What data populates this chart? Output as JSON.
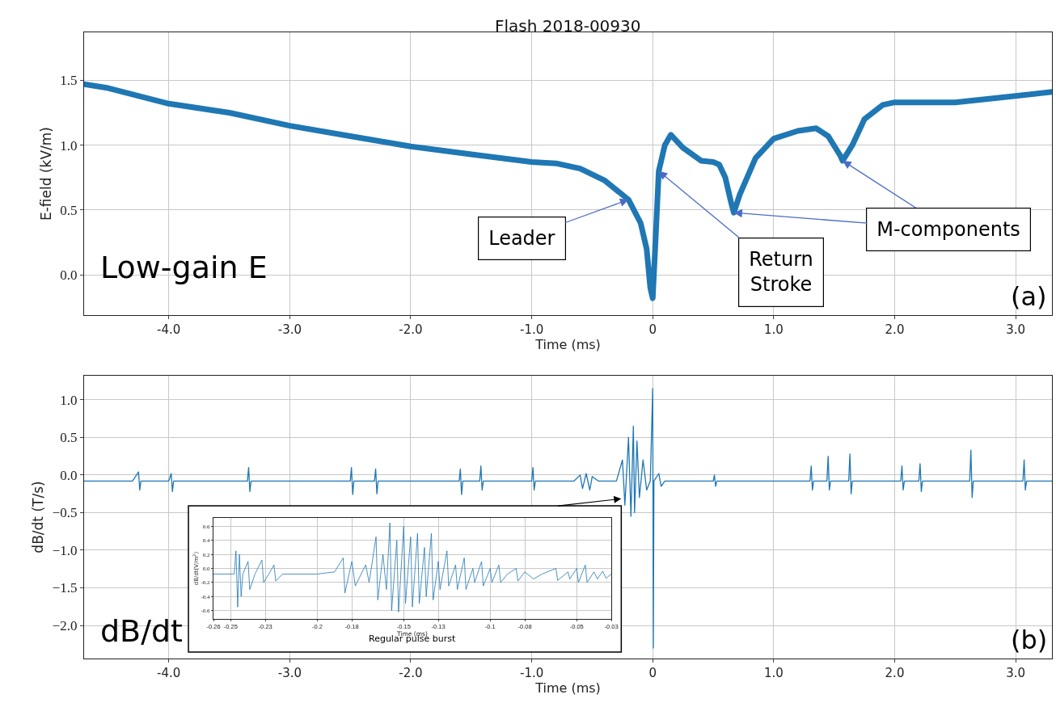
{
  "chart_data": [
    {
      "type": "line",
      "title": "Flash 2018-00930",
      "xlabel": "Time (ms)",
      "ylabel": "E-field (kV/m)",
      "x": [
        -4.7,
        -4.5,
        -4.0,
        -3.5,
        -3.0,
        -2.5,
        -2.0,
        -1.5,
        -1.0,
        -0.8,
        -0.6,
        -0.4,
        -0.2,
        -0.1,
        -0.05,
        -0.02,
        0.0,
        0.02,
        0.05,
        0.1,
        0.15,
        0.25,
        0.4,
        0.5,
        0.55,
        0.6,
        0.65,
        0.67,
        0.72,
        0.85,
        1.0,
        1.2,
        1.35,
        1.45,
        1.55,
        1.57,
        1.65,
        1.75,
        1.9,
        2.0,
        2.5,
        3.0,
        3.3
      ],
      "series": [
        {
          "color": "#1f77b4",
          "values": [
            1.47,
            1.44,
            1.32,
            1.25,
            1.15,
            1.07,
            0.99,
            0.93,
            0.87,
            0.86,
            0.82,
            0.73,
            0.58,
            0.4,
            0.2,
            -0.1,
            -0.18,
            0.2,
            0.8,
            1.0,
            1.08,
            0.98,
            0.88,
            0.87,
            0.85,
            0.75,
            0.55,
            0.48,
            0.62,
            0.9,
            1.05,
            1.11,
            1.13,
            1.07,
            0.92,
            0.88,
            1.0,
            1.2,
            1.31,
            1.33,
            1.33,
            1.38,
            1.41
          ]
        }
      ],
      "xlim": [
        -4.7,
        3.3
      ],
      "ylim": [
        -0.31,
        1.87
      ],
      "xticks": [
        {
          "value": -4,
          "label": "-4.0"
        },
        {
          "value": -3,
          "label": "-3.0"
        },
        {
          "value": -2,
          "label": "-2.0"
        },
        {
          "value": -1,
          "label": "-1.0"
        },
        0,
        {
          "value": 1,
          "label": "1.0"
        },
        {
          "value": 2,
          "label": "2.0"
        },
        {
          "value": 3,
          "label": "3.0"
        }
      ],
      "yticks": [
        {
          "value": 0,
          "label": "0.0"
        },
        0.5,
        {
          "value": 1,
          "label": "1.0"
        },
        1.5
      ],
      "grid": true,
      "annotations": [
        "Low-gain E",
        "(a)",
        {
          "text": "Leader",
          "x": -0.2,
          "y": 0.58
        },
        {
          "text": "Return\nStroke",
          "x": 0.05,
          "y": 0.8
        },
        {
          "text": "M-components",
          "x": 0.67,
          "y": 0.48
        }
      ]
    },
    {
      "type": "line",
      "xlabel": "Time (ms)",
      "ylabel": "dB/dt (T/s)",
      "x": [
        -4.7,
        -4.5,
        -4.3,
        -4.25,
        -4.24,
        -4.23,
        -4.0,
        -3.98,
        -3.97,
        -3.96,
        -3.6,
        -3.35,
        -3.34,
        -3.33,
        -3.32,
        -3.0,
        -2.5,
        -2.49,
        -2.48,
        -2.47,
        -2.3,
        -2.29,
        -2.28,
        -2.27,
        -1.6,
        -1.59,
        -1.58,
        -1.57,
        -1.43,
        -1.42,
        -1.41,
        -1.4,
        -1.0,
        -0.99,
        -0.98,
        -0.97,
        -0.65,
        -0.6,
        -0.58,
        -0.55,
        -0.52,
        -0.5,
        -0.45,
        -0.3,
        -0.25,
        -0.23,
        -0.2,
        -0.18,
        -0.16,
        -0.15,
        -0.13,
        -0.11,
        -0.08,
        -0.05,
        -0.02,
        0.0,
        0.005,
        0.01,
        0.05,
        0.07,
        0.1,
        0.5,
        0.51,
        0.52,
        0.53,
        1.3,
        1.31,
        1.32,
        1.33,
        1.44,
        1.45,
        1.46,
        1.47,
        1.62,
        1.63,
        1.64,
        1.65,
        2.05,
        2.06,
        2.07,
        2.08,
        2.2,
        2.21,
        2.22,
        2.23,
        2.62,
        2.63,
        2.64,
        2.65,
        3.06,
        3.07,
        3.08,
        3.09,
        3.3
      ],
      "series": [
        {
          "color": "#1f77b4",
          "values": [
            -0.08,
            -0.08,
            -0.08,
            0.04,
            -0.2,
            -0.08,
            -0.08,
            0.02,
            -0.22,
            -0.08,
            -0.08,
            -0.08,
            0.1,
            -0.22,
            -0.08,
            -0.08,
            -0.08,
            0.1,
            -0.26,
            -0.08,
            -0.08,
            0.08,
            -0.25,
            -0.08,
            -0.08,
            0.08,
            -0.26,
            -0.08,
            -0.08,
            0.12,
            -0.2,
            -0.08,
            -0.08,
            0.1,
            -0.2,
            -0.08,
            -0.08,
            0.0,
            -0.18,
            0.02,
            -0.2,
            -0.02,
            -0.08,
            -0.08,
            0.2,
            -0.4,
            0.5,
            -0.55,
            0.65,
            -0.5,
            0.45,
            -0.3,
            0.2,
            -0.2,
            -0.08,
            1.15,
            -2.3,
            -0.08,
            0.02,
            -0.15,
            -0.08,
            -0.08,
            0.0,
            -0.15,
            -0.08,
            -0.08,
            0.12,
            -0.2,
            -0.08,
            -0.08,
            0.25,
            -0.2,
            -0.08,
            -0.08,
            0.28,
            -0.25,
            -0.08,
            -0.08,
            0.12,
            -0.2,
            -0.08,
            -0.08,
            0.15,
            -0.22,
            -0.08,
            -0.08,
            0.33,
            -0.3,
            -0.08,
            -0.08,
            0.2,
            -0.2,
            -0.08,
            -0.08
          ]
        }
      ],
      "xlim": [
        -4.7,
        3.3
      ],
      "ylim": [
        -2.44,
        1.32
      ],
      "xticks": [
        {
          "value": -4,
          "label": "-4.0"
        },
        {
          "value": -3,
          "label": "-3.0"
        },
        {
          "value": -2,
          "label": "-2.0"
        },
        {
          "value": -1,
          "label": "-1.0"
        },
        0,
        {
          "value": 1,
          "label": "1.0"
        },
        {
          "value": 2,
          "label": "2.0"
        },
        {
          "value": 3,
          "label": "3.0"
        }
      ],
      "yticks": [
        {
          "value": 1,
          "label": "1.0"
        },
        0.5,
        {
          "value": 0,
          "label": "0.0"
        },
        {
          "value": -0.5,
          "label": "−0.5"
        },
        {
          "value": -1,
          "label": "−1.0"
        },
        {
          "value": -1.5,
          "label": "−1.5"
        },
        {
          "value": -2,
          "label": "−2.0"
        }
      ],
      "grid": true,
      "annotations": [
        "dB/dt",
        "(b)"
      ]
    },
    {
      "type": "line",
      "xlabel": "Time (ms)",
      "ylabel": "dB/dt(V/m$^{2}$)",
      "x": [
        -0.26,
        -0.248,
        -0.247,
        -0.246,
        -0.245,
        -0.244,
        -0.243,
        -0.24,
        -0.239,
        -0.236,
        -0.232,
        -0.231,
        -0.228,
        -0.225,
        -0.224,
        -0.22,
        -0.2,
        -0.19,
        -0.185,
        -0.184,
        -0.18,
        -0.178,
        -0.172,
        -0.17,
        -0.166,
        -0.165,
        -0.162,
        -0.16,
        -0.158,
        -0.157,
        -0.154,
        -0.153,
        -0.15,
        -0.149,
        -0.146,
        -0.145,
        -0.142,
        -0.141,
        -0.138,
        -0.137,
        -0.134,
        -0.133,
        -0.13,
        -0.129,
        -0.125,
        -0.124,
        -0.12,
        -0.119,
        -0.115,
        -0.114,
        -0.11,
        -0.109,
        -0.105,
        -0.104,
        -0.1,
        -0.099,
        -0.095,
        -0.094,
        -0.09,
        -0.085,
        -0.084,
        -0.08,
        -0.075,
        -0.07,
        -0.062,
        -0.061,
        -0.055,
        -0.054,
        -0.05,
        -0.049,
        -0.045,
        -0.044,
        -0.04,
        -0.038,
        -0.035,
        -0.033,
        -0.03
      ],
      "series": [
        {
          "color": "#1f77b4",
          "values": [
            -0.08,
            -0.08,
            0.25,
            -0.55,
            0.2,
            -0.4,
            -0.08,
            0.1,
            -0.3,
            -0.08,
            0.12,
            -0.2,
            -0.08,
            0.05,
            -0.18,
            -0.08,
            -0.08,
            -0.05,
            0.15,
            -0.35,
            0.1,
            -0.25,
            0.05,
            -0.2,
            0.45,
            -0.45,
            0.2,
            -0.3,
            0.65,
            -0.6,
            0.4,
            -0.62,
            0.6,
            -0.5,
            0.45,
            -0.55,
            0.5,
            -0.5,
            0.3,
            -0.4,
            0.5,
            -0.45,
            0.1,
            -0.3,
            0.25,
            -0.25,
            0.05,
            -0.3,
            0.15,
            -0.3,
            0.0,
            -0.2,
            0.1,
            -0.25,
            0.0,
            -0.2,
            0.05,
            -0.2,
            -0.08,
            0.0,
            -0.18,
            -0.05,
            -0.15,
            -0.08,
            0.0,
            -0.17,
            -0.05,
            -0.15,
            0.0,
            -0.2,
            0.05,
            -0.2,
            -0.05,
            -0.15,
            -0.04,
            -0.14,
            -0.08
          ]
        }
      ],
      "xlim": [
        -0.26,
        -0.03
      ],
      "ylim": [
        -0.72,
        0.72
      ],
      "xticks": [
        -0.26,
        -0.25,
        -0.23,
        -0.2,
        -0.18,
        -0.15,
        -0.13,
        -0.1,
        -0.08,
        -0.05,
        -0.03
      ],
      "yticks": [
        {
          "value": -0.6,
          "label": "-0.6"
        },
        {
          "value": -0.4,
          "label": "-0.4"
        },
        {
          "value": -0.2,
          "label": "-0.2"
        },
        {
          "value": 0,
          "label": "0.0"
        },
        0.2,
        0.4,
        0.6
      ],
      "grid": true,
      "annotations": [
        "Regular pulse burst"
      ]
    }
  ]
}
